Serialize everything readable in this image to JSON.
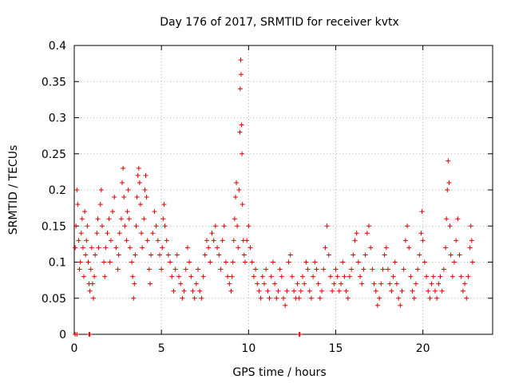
{
  "chart_data": {
    "type": "scatter",
    "title": "Day 176 of 2017, SRMTID for receiver kvtx",
    "xlabel": "GPS time / hours",
    "ylabel": "SRMTID / TECUs",
    "xlim": [
      0,
      24
    ],
    "ylim": [
      0,
      0.4
    ],
    "xticks": [
      0,
      5,
      10,
      15,
      20
    ],
    "xtick_labels": [
      "0",
      "5",
      "10",
      "15",
      "20"
    ],
    "yticks": [
      0,
      0.05,
      0.1,
      0.15,
      0.2,
      0.25,
      0.3,
      0.35,
      0.4
    ],
    "ytick_labels": [
      "0",
      "0.05",
      "0.1",
      "0.15",
      "0.2",
      "0.25",
      "0.3",
      "0.35",
      "0.4"
    ],
    "grid": true,
    "marker": "+",
    "marker_color": "#e00000",
    "points": [
      [
        0.05,
        0.12
      ],
      [
        0.1,
        0.15
      ],
      [
        0.15,
        0.2
      ],
      [
        0.2,
        0.18
      ],
      [
        0.25,
        0.13
      ],
      [
        0.3,
        0.09
      ],
      [
        0.35,
        0.1
      ],
      [
        0.4,
        0.14
      ],
      [
        0.45,
        0.16
      ],
      [
        0.5,
        0.12
      ],
      [
        0.55,
        0.08
      ],
      [
        0.6,
        0.17
      ],
      [
        0.65,
        0.11
      ],
      [
        0.7,
        0.13
      ],
      [
        0.75,
        0.15
      ],
      [
        0.8,
        0.1
      ],
      [
        0.85,
        0.07
      ],
      [
        0.9,
        0.06
      ],
      [
        0.95,
        0.09
      ],
      [
        1.0,
        0.12
      ],
      [
        1.05,
        0.07
      ],
      [
        1.1,
        0.05
      ],
      [
        1.15,
        0.08
      ],
      [
        1.2,
        0.11
      ],
      [
        1.3,
        0.14
      ],
      [
        1.35,
        0.16
      ],
      [
        1.4,
        0.12
      ],
      [
        1.5,
        0.18
      ],
      [
        1.55,
        0.2
      ],
      [
        1.6,
        0.15
      ],
      [
        1.7,
        0.1
      ],
      [
        1.75,
        0.08
      ],
      [
        1.8,
        0.12
      ],
      [
        1.9,
        0.14
      ],
      [
        2.0,
        0.16
      ],
      [
        2.05,
        0.1
      ],
      [
        2.1,
        0.13
      ],
      [
        2.2,
        0.17
      ],
      [
        2.3,
        0.19
      ],
      [
        2.4,
        0.12
      ],
      [
        2.5,
        0.09
      ],
      [
        2.55,
        0.11
      ],
      [
        2.6,
        0.14
      ],
      [
        2.7,
        0.16
      ],
      [
        2.75,
        0.21
      ],
      [
        2.8,
        0.23
      ],
      [
        2.85,
        0.19
      ],
      [
        2.9,
        0.15
      ],
      [
        3.0,
        0.13
      ],
      [
        3.05,
        0.17
      ],
      [
        3.1,
        0.2
      ],
      [
        3.15,
        0.16
      ],
      [
        3.2,
        0.12
      ],
      [
        3.3,
        0.1
      ],
      [
        3.35,
        0.08
      ],
      [
        3.4,
        0.05
      ],
      [
        3.45,
        0.07
      ],
      [
        3.5,
        0.11
      ],
      [
        3.55,
        0.15
      ],
      [
        3.6,
        0.19
      ],
      [
        3.65,
        0.22
      ],
      [
        3.7,
        0.23
      ],
      [
        3.75,
        0.21
      ],
      [
        3.8,
        0.18
      ],
      [
        3.85,
        0.14
      ],
      [
        3.9,
        0.12
      ],
      [
        4.0,
        0.16
      ],
      [
        4.05,
        0.2
      ],
      [
        4.1,
        0.22
      ],
      [
        4.15,
        0.19
      ],
      [
        4.2,
        0.13
      ],
      [
        4.3,
        0.09
      ],
      [
        4.35,
        0.07
      ],
      [
        4.4,
        0.11
      ],
      [
        4.5,
        0.14
      ],
      [
        4.6,
        0.17
      ],
      [
        4.7,
        0.15
      ],
      [
        4.8,
        0.13
      ],
      [
        4.9,
        0.11
      ],
      [
        5.0,
        0.09
      ],
      [
        5.05,
        0.12
      ],
      [
        5.1,
        0.16
      ],
      [
        5.15,
        0.18
      ],
      [
        5.2,
        0.15
      ],
      [
        5.3,
        0.13
      ],
      [
        5.4,
        0.11
      ],
      [
        5.5,
        0.1
      ],
      [
        5.6,
        0.08
      ],
      [
        5.7,
        0.06
      ],
      [
        5.8,
        0.09
      ],
      [
        5.9,
        0.11
      ],
      [
        6.0,
        0.08
      ],
      [
        6.1,
        0.07
      ],
      [
        6.2,
        0.05
      ],
      [
        6.3,
        0.06
      ],
      [
        6.4,
        0.09
      ],
      [
        6.5,
        0.12
      ],
      [
        6.6,
        0.1
      ],
      [
        6.7,
        0.08
      ],
      [
        6.8,
        0.06
      ],
      [
        6.9,
        0.05
      ],
      [
        7.0,
        0.07
      ],
      [
        7.1,
        0.09
      ],
      [
        7.2,
        0.06
      ],
      [
        7.3,
        0.05
      ],
      [
        7.4,
        0.08
      ],
      [
        7.5,
        0.11
      ],
      [
        7.6,
        0.13
      ],
      [
        7.7,
        0.12
      ],
      [
        7.8,
        0.1
      ],
      [
        7.9,
        0.14
      ],
      [
        8.0,
        0.13
      ],
      [
        8.1,
        0.15
      ],
      [
        8.2,
        0.12
      ],
      [
        8.3,
        0.11
      ],
      [
        8.4,
        0.09
      ],
      [
        8.5,
        0.13
      ],
      [
        8.6,
        0.15
      ],
      [
        8.7,
        0.1
      ],
      [
        8.8,
        0.08
      ],
      [
        8.9,
        0.07
      ],
      [
        9.0,
        0.06
      ],
      [
        9.05,
        0.08
      ],
      [
        9.1,
        0.1
      ],
      [
        9.15,
        0.13
      ],
      [
        9.2,
        0.16
      ],
      [
        9.25,
        0.19
      ],
      [
        9.3,
        0.21
      ],
      [
        9.35,
        0.15
      ],
      [
        9.4,
        0.12
      ],
      [
        9.45,
        0.2
      ],
      [
        9.5,
        0.28
      ],
      [
        9.52,
        0.34
      ],
      [
        9.55,
        0.38
      ],
      [
        9.57,
        0.36
      ],
      [
        9.6,
        0.29
      ],
      [
        9.62,
        0.25
      ],
      [
        9.65,
        0.18
      ],
      [
        9.7,
        0.13
      ],
      [
        9.75,
        0.11
      ],
      [
        9.8,
        0.1
      ],
      [
        9.9,
        0.13
      ],
      [
        10.0,
        0.15
      ],
      [
        10.1,
        0.12
      ],
      [
        10.2,
        0.1
      ],
      [
        10.3,
        0.08
      ],
      [
        10.4,
        0.09
      ],
      [
        10.5,
        0.07
      ],
      [
        10.6,
        0.06
      ],
      [
        10.7,
        0.05
      ],
      [
        10.8,
        0.08
      ],
      [
        10.9,
        0.07
      ],
      [
        11.0,
        0.09
      ],
      [
        11.1,
        0.06
      ],
      [
        11.2,
        0.05
      ],
      [
        11.3,
        0.08
      ],
      [
        11.4,
        0.1
      ],
      [
        11.5,
        0.07
      ],
      [
        11.6,
        0.05
      ],
      [
        11.7,
        0.06
      ],
      [
        11.8,
        0.09
      ],
      [
        11.9,
        0.08
      ],
      [
        12.0,
        0.05
      ],
      [
        12.1,
        0.04
      ],
      [
        12.2,
        0.06
      ],
      [
        12.3,
        0.1
      ],
      [
        12.4,
        0.11
      ],
      [
        12.5,
        0.08
      ],
      [
        12.6,
        0.06
      ],
      [
        12.7,
        0.05
      ],
      [
        12.8,
        0.07
      ],
      [
        12.9,
        0.05
      ],
      [
        13.0,
        0.06
      ],
      [
        13.1,
        0.08
      ],
      [
        13.2,
        0.07
      ],
      [
        13.3,
        0.1
      ],
      [
        13.4,
        0.09
      ],
      [
        13.5,
        0.06
      ],
      [
        13.6,
        0.05
      ],
      [
        13.7,
        0.08
      ],
      [
        13.8,
        0.1
      ],
      [
        13.9,
        0.09
      ],
      [
        14.0,
        0.07
      ],
      [
        14.1,
        0.05
      ],
      [
        14.2,
        0.06
      ],
      [
        14.3,
        0.09
      ],
      [
        14.4,
        0.12
      ],
      [
        14.5,
        0.15
      ],
      [
        14.6,
        0.11
      ],
      [
        14.7,
        0.08
      ],
      [
        14.8,
        0.06
      ],
      [
        14.9,
        0.07
      ],
      [
        15.0,
        0.09
      ],
      [
        15.1,
        0.08
      ],
      [
        15.2,
        0.06
      ],
      [
        15.3,
        0.07
      ],
      [
        15.4,
        0.1
      ],
      [
        15.5,
        0.08
      ],
      [
        15.6,
        0.06
      ],
      [
        15.7,
        0.05
      ],
      [
        15.8,
        0.08
      ],
      [
        15.9,
        0.09
      ],
      [
        16.0,
        0.11
      ],
      [
        16.1,
        0.13
      ],
      [
        16.2,
        0.14
      ],
      [
        16.3,
        0.1
      ],
      [
        16.4,
        0.08
      ],
      [
        16.5,
        0.07
      ],
      [
        16.6,
        0.09
      ],
      [
        16.7,
        0.11
      ],
      [
        16.8,
        0.14
      ],
      [
        16.9,
        0.15
      ],
      [
        17.0,
        0.12
      ],
      [
        17.1,
        0.09
      ],
      [
        17.2,
        0.07
      ],
      [
        17.3,
        0.06
      ],
      [
        17.4,
        0.04
      ],
      [
        17.5,
        0.05
      ],
      [
        17.6,
        0.07
      ],
      [
        17.7,
        0.09
      ],
      [
        17.8,
        0.11
      ],
      [
        17.9,
        0.12
      ],
      [
        18.0,
        0.09
      ],
      [
        18.1,
        0.07
      ],
      [
        18.2,
        0.06
      ],
      [
        18.3,
        0.08
      ],
      [
        18.4,
        0.1
      ],
      [
        18.5,
        0.07
      ],
      [
        18.6,
        0.05
      ],
      [
        18.7,
        0.04
      ],
      [
        18.8,
        0.06
      ],
      [
        18.9,
        0.09
      ],
      [
        19.0,
        0.13
      ],
      [
        19.1,
        0.15
      ],
      [
        19.2,
        0.12
      ],
      [
        19.3,
        0.08
      ],
      [
        19.4,
        0.06
      ],
      [
        19.5,
        0.05
      ],
      [
        19.6,
        0.07
      ],
      [
        19.7,
        0.09
      ],
      [
        19.8,
        0.11
      ],
      [
        19.9,
        0.14
      ],
      [
        19.95,
        0.17
      ],
      [
        20.0,
        0.13
      ],
      [
        20.1,
        0.1
      ],
      [
        20.2,
        0.08
      ],
      [
        20.3,
        0.06
      ],
      [
        20.4,
        0.05
      ],
      [
        20.5,
        0.07
      ],
      [
        20.6,
        0.08
      ],
      [
        20.7,
        0.06
      ],
      [
        20.8,
        0.05
      ],
      [
        20.9,
        0.07
      ],
      [
        21.0,
        0.08
      ],
      [
        21.1,
        0.06
      ],
      [
        21.2,
        0.09
      ],
      [
        21.3,
        0.12
      ],
      [
        21.35,
        0.16
      ],
      [
        21.4,
        0.2
      ],
      [
        21.45,
        0.24
      ],
      [
        21.5,
        0.21
      ],
      [
        21.55,
        0.15
      ],
      [
        21.6,
        0.11
      ],
      [
        21.7,
        0.08
      ],
      [
        21.8,
        0.1
      ],
      [
        21.9,
        0.13
      ],
      [
        22.0,
        0.16
      ],
      [
        22.1,
        0.11
      ],
      [
        22.2,
        0.08
      ],
      [
        22.3,
        0.06
      ],
      [
        22.4,
        0.07
      ],
      [
        22.5,
        0.05
      ],
      [
        22.6,
        0.08
      ],
      [
        22.7,
        0.12
      ],
      [
        22.75,
        0.15
      ],
      [
        22.8,
        0.13
      ],
      [
        22.85,
        0.1
      ]
    ],
    "baseline_points": [
      [
        0.05,
        0
      ],
      [
        0.15,
        0
      ],
      [
        0.85,
        0
      ],
      [
        0.9,
        0
      ],
      [
        12.9,
        0
      ],
      [
        12.95,
        0
      ]
    ]
  }
}
